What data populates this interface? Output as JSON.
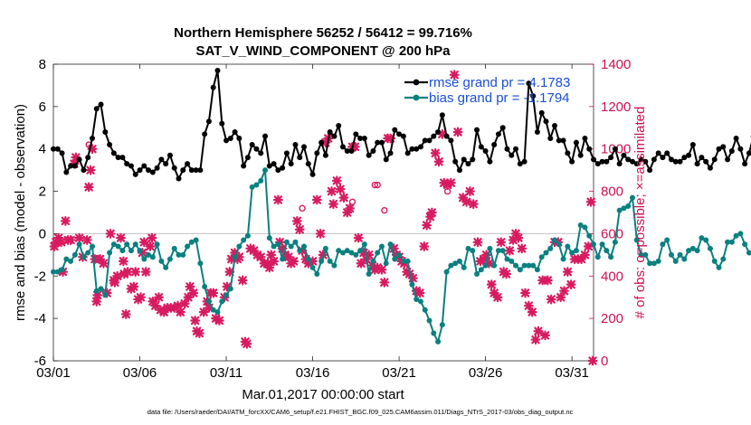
{
  "chart_data": {
    "type": "line",
    "title": "Northern Hemisphere 56252 / 56412 = 99.716%",
    "subtitle": "SAT_V_WIND_COMPONENT @ 200 hPa",
    "xlabel": "Mar.01,2017 00:00:00 start",
    "ylabel_left": "rmse and bias (model - observation)",
    "ylabel_right": "# of obs: o=possible; ×=assimilated",
    "footer": "data file: /Users/raeder/DAI/ATM_forcXX/CAM6_setup/f.e21.FHIST_BGC.f09_025.CAM6assim.011/Diags_NTrS_2017-03/obs_diag_output.nc",
    "x_ticks": [
      "03/01",
      "03/06",
      "03/11",
      "03/16",
      "03/21",
      "03/26",
      "03/31"
    ],
    "ylim_left": [
      -6,
      8
    ],
    "yticks_left": [
      "-6",
      "-4",
      "-2",
      "0",
      "2",
      "4",
      "6",
      "8"
    ],
    "ylim_right": [
      0,
      1400
    ],
    "yticks_right": [
      "0",
      "200",
      "400",
      "600",
      "800",
      "1000",
      "1200",
      "1400"
    ],
    "xlim_days": [
      0,
      31.25
    ],
    "zero_line": 0,
    "grid": false,
    "legend": {
      "placement": "top-right",
      "entries": [
        "rmse grand pr = 4.1783",
        "bias grand pr = -1.1794"
      ]
    },
    "colors": {
      "rmse": "#000000",
      "bias": "#0a8080",
      "obs": "#d81b60",
      "zero_line": "#c8c8c8",
      "right_axis": "#cc1155"
    },
    "series": [
      {
        "name": "rmse grand pr = 4.1783",
        "axis": "left",
        "x_start_day": 0,
        "x_step_day": 0.25,
        "values": [
          4.0,
          4.0,
          3.8,
          2.9,
          3.2,
          3.2,
          3.5,
          3.0,
          3.6,
          4.5,
          5.9,
          6.1,
          4.8,
          4.2,
          3.8,
          3.6,
          3.6,
          3.3,
          3.2,
          2.8,
          3.0,
          3.2,
          3.0,
          2.9,
          3.1,
          3.5,
          3.3,
          3.7,
          3.1,
          2.6,
          3.0,
          3.3,
          3.0,
          3.0,
          3.0,
          4.7,
          5.3,
          6.9,
          7.7,
          5.2,
          4.4,
          4.5,
          4.8,
          4.5,
          3.2,
          3.6,
          4.2,
          4.0,
          3.8,
          4.6,
          3.2,
          3.3,
          3.0,
          3.1,
          3.8,
          3.3,
          4.2,
          3.6,
          4.1,
          3.3,
          2.8,
          3.8,
          4.3,
          3.7,
          4.8,
          4.6,
          5.1,
          4.1,
          3.9,
          3.9,
          4.7,
          4.5,
          4.5,
          3.7,
          3.9,
          4.3,
          4.3,
          3.5,
          3.8,
          4.9,
          4.7,
          4.6,
          3.8,
          4.0,
          4.0,
          4.1,
          4.4,
          4.4,
          4.6,
          4.8,
          5.6,
          4.6,
          4.4,
          3.4,
          3.0,
          3.5,
          3.3,
          3.5,
          4.9,
          4.1,
          3.9,
          3.4,
          4.2,
          4.7,
          5.0,
          4.0,
          3.7,
          4.0,
          3.3,
          3.4,
          7.1,
          6.5,
          4.8,
          5.7,
          5.3,
          4.5,
          5.1,
          4.4,
          4.4,
          3.8,
          3.4,
          4.3,
          3.7,
          4.5,
          4.0,
          3.5,
          3.3,
          3.4,
          3.4,
          3.6,
          4.0,
          3.3,
          3.7,
          3.5,
          3.4,
          3.3,
          3.5,
          3.4,
          3.0,
          3.5,
          3.8,
          3.6,
          3.8,
          3.5,
          3.4,
          3.4,
          3.6,
          3.7,
          4.2,
          3.3,
          3.6,
          3.4,
          3.1,
          3.5,
          4.0,
          4.1,
          3.5,
          3.9,
          4.5,
          4.0,
          3.3,
          3.8,
          4.6,
          3.8,
          3.8,
          3.8
        ]
      },
      {
        "name": "bias grand pr = -1.1794",
        "axis": "left",
        "x_start_day": 0,
        "x_step_day": 0.25,
        "values": [
          -1.8,
          -1.8,
          -1.7,
          -1.2,
          -1.3,
          -1.0,
          -0.5,
          -1.1,
          -0.9,
          -0.6,
          -2.7,
          -2.6,
          -2.9,
          -0.9,
          -0.5,
          -0.6,
          -0.8,
          -0.5,
          -0.8,
          -0.5,
          -0.8,
          -1.2,
          -1.0,
          -1.1,
          -0.5,
          -1.3,
          -1.6,
          -1.2,
          -0.7,
          -1.0,
          -1.0,
          -0.6,
          -0.4,
          -0.3,
          -1.4,
          -2.5,
          -3.2,
          -3.6,
          -3.7,
          -3.2,
          -2.9,
          -2.6,
          -1.1,
          -0.6,
          -0.3,
          -0.1,
          2.2,
          2.3,
          2.5,
          3.0,
          -0.2,
          -0.6,
          -0.5,
          -1.2,
          -0.4,
          -0.6,
          -0.4,
          -0.8,
          -0.6,
          -1.2,
          -1.6,
          -1.9,
          -1.3,
          -0.7,
          -1.3,
          -1.5,
          -0.8,
          -0.9,
          -0.8,
          -0.9,
          -1.0,
          -0.8,
          -0.5,
          -1.9,
          -1.3,
          -0.9,
          -0.6,
          -1.4,
          -0.5,
          -1.2,
          -1.0,
          -1.3,
          -1.3,
          -2.4,
          -3.1,
          -3.2,
          -3.6,
          -4.1,
          -4.7,
          -5.1,
          -4.3,
          -1.8,
          -1.5,
          -1.4,
          -1.3,
          -1.6,
          -0.7,
          -0.8,
          -1.9,
          -1.7,
          -1.5,
          -0.7,
          -1.5,
          -0.8,
          -0.8,
          -1.2,
          -1.3,
          -1.5,
          -1.7,
          -1.5,
          -1.5,
          -1.5,
          -1.7,
          -1.1,
          -0.9,
          -0.7,
          -0.3,
          -0.5,
          -1.2,
          -0.6,
          -0.9,
          -0.8,
          0.4,
          0.3,
          -0.1,
          -0.5,
          -1.1,
          -0.5,
          -0.8,
          -1.1,
          -0.4,
          1.1,
          1.2,
          1.3,
          1.7,
          -0.3,
          -1.0,
          -1.0,
          -1.4,
          -1.4,
          -1.3,
          -0.5,
          -0.3,
          -1.0,
          -1.3,
          -1.0,
          -1.2,
          -0.8,
          -0.7,
          -0.8,
          -0.2,
          -0.3,
          -0.7,
          -1.3,
          -1.6,
          -1.2,
          -0.4,
          -0.4,
          -0.1,
          0.0,
          -0.5,
          -0.9,
          -0.9,
          -1.0,
          -0.9,
          -1.3,
          -1.3
        ]
      },
      {
        "name": "",
        "axis": "right",
        "marker": "x",
        "points": [
          [
            0.05,
            540
          ],
          [
            0.15,
            560
          ],
          [
            0.3,
            580
          ],
          [
            0.45,
            560
          ],
          [
            0.55,
            420
          ],
          [
            0.7,
            660
          ],
          [
            0.85,
            570
          ],
          [
            1.0,
            570
          ],
          [
            1.2,
            930
          ],
          [
            1.3,
            960
          ],
          [
            1.5,
            580
          ],
          [
            1.7,
            490
          ],
          [
            1.95,
            570
          ],
          [
            2.05,
            820
          ],
          [
            2.15,
            900
          ],
          [
            2.25,
            1000
          ],
          [
            2.4,
            480
          ],
          [
            2.5,
            280
          ],
          [
            2.55,
            310
          ],
          [
            2.7,
            480
          ],
          [
            2.9,
            460
          ],
          [
            3.1,
            320
          ],
          [
            3.3,
            600
          ],
          [
            3.5,
            380
          ],
          [
            3.55,
            370
          ],
          [
            3.7,
            400
          ],
          [
            3.9,
            580
          ],
          [
            4.05,
            470
          ],
          [
            4.1,
            410
          ],
          [
            4.2,
            220
          ],
          [
            4.3,
            420
          ],
          [
            4.5,
            340
          ],
          [
            4.65,
            350
          ],
          [
            4.75,
            420
          ],
          [
            4.9,
            290
          ],
          [
            5.05,
            300
          ],
          [
            5.15,
            510
          ],
          [
            5.25,
            560
          ],
          [
            5.35,
            420
          ],
          [
            5.6,
            540
          ],
          [
            5.7,
            580
          ],
          [
            5.75,
            280
          ],
          [
            5.9,
            260
          ],
          [
            6.1,
            300
          ],
          [
            6.2,
            240
          ],
          [
            6.4,
            230
          ],
          [
            6.6,
            250
          ],
          [
            6.8,
            250
          ],
          [
            7.0,
            250
          ],
          [
            7.2,
            260
          ],
          [
            7.35,
            230
          ],
          [
            7.6,
            270
          ],
          [
            7.8,
            300
          ],
          [
            7.9,
            350
          ],
          [
            8.1,
            320
          ],
          [
            8.2,
            190
          ],
          [
            8.3,
            140
          ],
          [
            8.45,
            130
          ],
          [
            8.7,
            230
          ],
          [
            8.9,
            280
          ],
          [
            9.0,
            250
          ],
          [
            9.1,
            320
          ],
          [
            9.25,
            320
          ],
          [
            9.4,
            200
          ],
          [
            9.6,
            190
          ],
          [
            9.9,
            300
          ],
          [
            10.05,
            350
          ],
          [
            10.2,
            420
          ],
          [
            10.3,
            480
          ],
          [
            10.5,
            510
          ],
          [
            10.65,
            480
          ],
          [
            10.75,
            490
          ],
          [
            10.95,
            380
          ],
          [
            11.1,
            90
          ],
          [
            11.2,
            80
          ],
          [
            11.4,
            530
          ],
          [
            11.6,
            520
          ],
          [
            11.8,
            500
          ],
          [
            12.0,
            490
          ],
          [
            12.2,
            460
          ],
          [
            12.4,
            460
          ],
          [
            12.5,
            440
          ],
          [
            12.6,
            500
          ],
          [
            12.75,
            470
          ],
          [
            13.0,
            760
          ],
          [
            13.1,
            560
          ],
          [
            13.25,
            530
          ],
          [
            13.4,
            500
          ],
          [
            13.6,
            490
          ],
          [
            13.75,
            460
          ],
          [
            13.9,
            470
          ],
          [
            14.1,
            660
          ],
          [
            14.25,
            620
          ],
          [
            14.4,
            520
          ],
          [
            14.6,
            480
          ],
          [
            14.75,
            460
          ],
          [
            15.0,
            470
          ],
          [
            15.25,
            760
          ],
          [
            15.45,
            600
          ],
          [
            15.6,
            500
          ],
          [
            15.75,
            1030
          ],
          [
            15.9,
            1050
          ],
          [
            16.1,
            800
          ],
          [
            16.2,
            740
          ],
          [
            16.4,
            850
          ],
          [
            16.6,
            810
          ],
          [
            16.8,
            770
          ],
          [
            17.0,
            700
          ],
          [
            17.15,
            720
          ],
          [
            17.3,
            1010
          ],
          [
            17.45,
            1010
          ],
          [
            17.65,
            580
          ],
          [
            17.8,
            460
          ],
          [
            17.95,
            510
          ],
          [
            18.1,
            480
          ],
          [
            18.25,
            500
          ],
          [
            18.45,
            450
          ],
          [
            18.6,
            430
          ],
          [
            18.75,
            440
          ],
          [
            19.0,
            430
          ],
          [
            19.15,
            370
          ],
          [
            19.35,
            1050
          ],
          [
            19.5,
            1050
          ],
          [
            19.7,
            530
          ],
          [
            19.85,
            500
          ],
          [
            20.0,
            490
          ],
          [
            20.15,
            470
          ],
          [
            20.3,
            460
          ],
          [
            20.45,
            420
          ],
          [
            20.6,
            410
          ],
          [
            20.8,
            390
          ],
          [
            21.0,
            330
          ],
          [
            21.2,
            320
          ],
          [
            21.45,
            540
          ],
          [
            21.6,
            640
          ],
          [
            21.8,
            680
          ],
          [
            21.9,
            700
          ],
          [
            22.1,
            980
          ],
          [
            22.3,
            940
          ],
          [
            22.5,
            1070
          ],
          [
            22.6,
            840
          ],
          [
            22.8,
            830
          ],
          [
            23.0,
            840
          ],
          [
            23.2,
            1350
          ],
          [
            23.4,
            1080
          ],
          [
            23.7,
            770
          ],
          [
            23.9,
            750
          ],
          [
            24.1,
            800
          ],
          [
            24.3,
            740
          ],
          [
            24.55,
            560
          ],
          [
            24.7,
            470
          ],
          [
            24.9,
            480
          ],
          [
            25.05,
            500
          ],
          [
            25.2,
            460
          ],
          [
            25.35,
            360
          ],
          [
            25.5,
            320
          ],
          [
            25.7,
            300
          ],
          [
            25.9,
            560
          ],
          [
            26.05,
            420
          ],
          [
            26.2,
            410
          ],
          [
            26.4,
            520
          ],
          [
            26.6,
            570
          ],
          [
            26.75,
            600
          ],
          [
            26.9,
            580
          ],
          [
            27.1,
            530
          ],
          [
            27.3,
            320
          ],
          [
            27.5,
            260
          ],
          [
            27.7,
            230
          ],
          [
            27.9,
            100
          ],
          [
            28.05,
            140
          ],
          [
            28.3,
            380
          ],
          [
            28.45,
            120
          ],
          [
            28.6,
            380
          ],
          [
            28.8,
            290
          ],
          [
            29.0,
            560
          ],
          [
            29.2,
            560
          ],
          [
            29.35,
            300
          ],
          [
            29.55,
            330
          ],
          [
            29.75,
            420
          ],
          [
            29.95,
            360
          ],
          [
            30.15,
            480
          ],
          [
            30.35,
            480
          ],
          [
            30.55,
            480
          ],
          [
            30.75,
            500
          ],
          [
            30.95,
            540
          ],
          [
            31.1,
            750
          ],
          [
            31.2,
            0
          ]
        ]
      },
      {
        "name": "",
        "axis": "right",
        "marker": "o",
        "points": [
          [
            2.05,
            1020
          ],
          [
            14.4,
            720
          ],
          [
            17.3,
            750
          ],
          [
            18.6,
            830
          ],
          [
            18.75,
            830
          ],
          [
            19.15,
            710
          ],
          [
            21.8,
            690
          ],
          [
            22.8,
            800
          ]
        ]
      }
    ]
  }
}
